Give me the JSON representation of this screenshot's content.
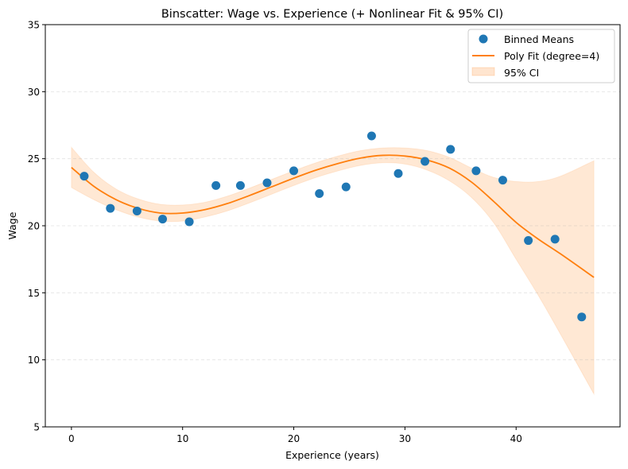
{
  "chart_data": {
    "type": "scatter",
    "title": "Binscatter: Wage vs. Experience (+ Nonlinear Fit & 95% CI)",
    "xlabel": "Experience (years)",
    "ylabel": "Wage",
    "xlim": [
      -2.35,
      49.35
    ],
    "ylim": [
      5,
      35
    ],
    "xticks": [
      0,
      10,
      20,
      30,
      40
    ],
    "yticks": [
      5,
      10,
      15,
      20,
      25,
      30,
      35
    ],
    "grid": "horizontal dashed",
    "legend_position": "top-right",
    "legend": [
      {
        "label": "Binned Means",
        "kind": "marker",
        "color": "#1f77b4"
      },
      {
        "label": "Poly Fit (degree=4)",
        "kind": "line",
        "color": "#ff7f0e"
      },
      {
        "label": "95% CI",
        "kind": "patch",
        "color": "#ff7f0e"
      }
    ],
    "series": [
      {
        "name": "Binned Means",
        "type": "scatter",
        "color": "#1f77b4",
        "x": [
          1.15,
          3.5,
          5.9,
          8.2,
          10.6,
          13.0,
          15.2,
          17.6,
          20.0,
          22.3,
          24.7,
          27.0,
          29.4,
          31.8,
          34.1,
          36.4,
          38.8,
          41.1,
          43.5,
          45.9
        ],
        "y": [
          23.7,
          21.3,
          21.1,
          20.5,
          20.3,
          23.0,
          23.0,
          23.2,
          24.1,
          22.4,
          22.9,
          26.7,
          23.9,
          24.8,
          25.7,
          24.1,
          23.4,
          18.9,
          19.0,
          13.2
        ]
      },
      {
        "name": "Poly Fit (degree=4)",
        "type": "line",
        "color": "#ff7f0e",
        "x": [
          0,
          2,
          4,
          6,
          8,
          10,
          12,
          14,
          16,
          18,
          20,
          22,
          24,
          26,
          28,
          30,
          32,
          34,
          36,
          38,
          40,
          42,
          44,
          47
        ],
        "y": [
          24.35,
          22.95,
          21.95,
          21.3,
          20.95,
          20.95,
          21.2,
          21.65,
          22.25,
          22.9,
          23.55,
          24.15,
          24.65,
          25.05,
          25.25,
          25.2,
          24.9,
          24.3,
          23.25,
          21.8,
          20.25,
          19.0,
          17.9,
          16.15
        ]
      },
      {
        "name": "95% CI",
        "type": "area",
        "color": "#ff7f0e",
        "x": [
          0,
          2,
          4,
          6,
          8,
          10,
          12,
          14,
          16,
          18,
          20,
          22,
          24,
          26,
          28,
          30,
          32,
          34,
          36,
          38,
          40,
          42,
          44,
          47
        ],
        "upper": [
          25.85,
          24.0,
          22.75,
          22.0,
          21.6,
          21.55,
          21.75,
          22.2,
          22.8,
          23.45,
          24.1,
          24.7,
          25.2,
          25.6,
          25.8,
          25.8,
          25.6,
          25.1,
          24.3,
          23.6,
          23.3,
          23.3,
          23.7,
          24.85
        ],
        "lower": [
          22.85,
          21.95,
          21.2,
          20.65,
          20.35,
          20.35,
          20.65,
          21.1,
          21.7,
          22.35,
          23.0,
          23.6,
          24.1,
          24.5,
          24.7,
          24.6,
          24.15,
          23.35,
          22.1,
          20.2,
          17.5,
          14.8,
          11.9,
          7.45
        ]
      }
    ]
  }
}
